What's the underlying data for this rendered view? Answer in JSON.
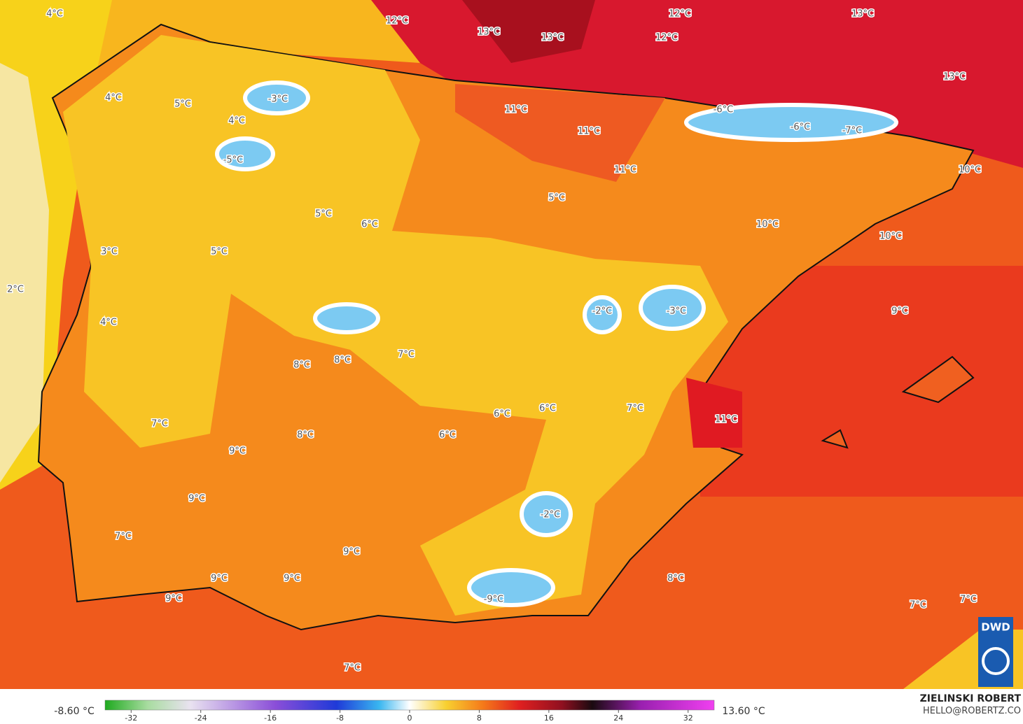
{
  "map": {
    "temperature_labels": [
      "4°C",
      "12°C",
      "13°C",
      "13°C",
      "12°C",
      "12°C",
      "13°C",
      "13°C",
      "4°C",
      "5°C",
      "-3°C",
      "4°C",
      "-5°C",
      "11°C",
      "11°C",
      "-6°C",
      "-6°C",
      "-7°C",
      "11°C",
      "10°C",
      "5°C",
      "5°C",
      "6°C",
      "10°C",
      "10°C",
      "3°C",
      "5°C",
      "2°C",
      "-2°C",
      "-3°C",
      "9°C",
      "4°C",
      "8°C",
      "8°C",
      "7°C",
      "6°C",
      "6°C",
      "7°C",
      "11°C",
      "7°C",
      "8°C",
      "6°C",
      "9°C",
      "9°C",
      "-2°C",
      "7°C",
      "9°C",
      "8°C",
      "9°C",
      "9°C",
      "-9°C",
      "9°C",
      "7°C",
      "7°C",
      "7°C"
    ]
  },
  "colorbar": {
    "min_label": "-8.60 °C",
    "max_label": "13.60 °C",
    "range": [
      -35,
      35
    ],
    "ticks": [
      -32,
      -24,
      -16,
      -8,
      0,
      8,
      16,
      24,
      32
    ]
  },
  "credit": {
    "author": "ZIELINSKI ROBERT",
    "email": "HELLO@ROBERTZ.CO",
    "logo": "DWD"
  }
}
